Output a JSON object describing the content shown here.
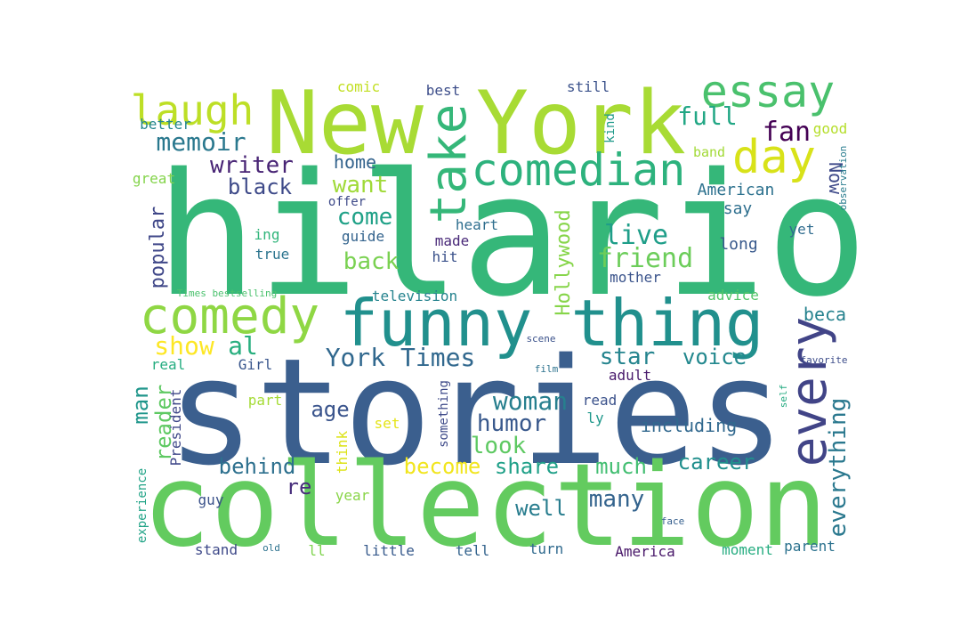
{
  "words": [
    {
      "text": "hilario",
      "color": "#35b779"
    },
    {
      "text": "stories",
      "color": "#3b5f8e"
    },
    {
      "text": "collection",
      "color": "#63cb5f"
    },
    {
      "text": "New York",
      "color": "#a8db34"
    },
    {
      "text": "funny thing",
      "color": "#21908d"
    },
    {
      "text": "comedy",
      "color": "#8fd744"
    },
    {
      "text": "comedian",
      "color": "#2db27d"
    },
    {
      "text": "essay",
      "color": "#4ac16d"
    },
    {
      "text": "take",
      "color": "#35b779"
    },
    {
      "text": "laugh",
      "color": "#bddf26"
    },
    {
      "text": "day",
      "color": "#d8e219"
    },
    {
      "text": "every",
      "color": "#414487"
    },
    {
      "text": "everything",
      "color": "#2a788e"
    },
    {
      "text": "memoir",
      "color": "#2a788e"
    },
    {
      "text": "writer",
      "color": "#482475"
    },
    {
      "text": "black",
      "color": "#3e4a89"
    },
    {
      "text": "want",
      "color": "#a0da39"
    },
    {
      "text": "come",
      "color": "#1fa187"
    },
    {
      "text": "back",
      "color": "#7ad151"
    },
    {
      "text": "home",
      "color": "#33638d"
    },
    {
      "text": "live",
      "color": "#1f9e89"
    },
    {
      "text": "friend",
      "color": "#6ccd5a"
    },
    {
      "text": "full",
      "color": "#22a785"
    },
    {
      "text": "fan",
      "color": "#440154"
    },
    {
      "text": "good",
      "color": "#b5de2b"
    },
    {
      "text": "Now",
      "color": "#3e4989"
    },
    {
      "text": "American",
      "color": "#2c718e"
    },
    {
      "text": "say",
      "color": "#2e6f8e"
    },
    {
      "text": "long",
      "color": "#38598c"
    },
    {
      "text": "yet",
      "color": "#2f6c8e"
    },
    {
      "text": "Hollywood",
      "color": "#86d549"
    },
    {
      "text": "popular",
      "color": "#3f4788"
    },
    {
      "text": "show",
      "color": "#fde725"
    },
    {
      "text": "al",
      "color": "#29af7f"
    },
    {
      "text": "York Times",
      "color": "#31688e"
    },
    {
      "text": "star",
      "color": "#25848e"
    },
    {
      "text": "voice",
      "color": "#23888e"
    },
    {
      "text": "beca",
      "color": "#26828e"
    },
    {
      "text": "man",
      "color": "#1f968b"
    },
    {
      "text": "reader",
      "color": "#5ec962"
    },
    {
      "text": "age",
      "color": "#3a548c"
    },
    {
      "text": "woman",
      "color": "#277f8e"
    },
    {
      "text": "humor",
      "color": "#38588c"
    },
    {
      "text": "look",
      "color": "#5ec962"
    },
    {
      "text": "behind",
      "color": "#2d708e"
    },
    {
      "text": "become",
      "color": "#f1e51d"
    },
    {
      "text": "share",
      "color": "#1fa088"
    },
    {
      "text": "much",
      "color": "#42be71"
    },
    {
      "text": "career",
      "color": "#218f8d"
    },
    {
      "text": "re",
      "color": "#472d7b"
    },
    {
      "text": "many",
      "color": "#33638d"
    },
    {
      "text": "well",
      "color": "#287d8e"
    },
    {
      "text": "including",
      "color": "#31688e"
    },
    {
      "text": "comic",
      "color": "#c2df23"
    },
    {
      "text": "best",
      "color": "#3d4e8a"
    },
    {
      "text": "still",
      "color": "#3b528b"
    },
    {
      "text": "kind",
      "color": "#1f9a8a"
    },
    {
      "text": "band",
      "color": "#a2da37"
    },
    {
      "text": "better",
      "color": "#24868e"
    },
    {
      "text": "great",
      "color": "#84d44b"
    },
    {
      "text": "offer",
      "color": "#3e4a89"
    },
    {
      "text": "heart",
      "color": "#2e6e8e"
    },
    {
      "text": "ing",
      "color": "#31b57b"
    },
    {
      "text": "true",
      "color": "#2b748e"
    },
    {
      "text": "guide",
      "color": "#33638d"
    },
    {
      "text": "made",
      "color": "#482878"
    },
    {
      "text": "hit",
      "color": "#3b528b"
    },
    {
      "text": "mother",
      "color": "#3a538b"
    },
    {
      "text": "advice",
      "color": "#52c569"
    },
    {
      "text": "television",
      "color": "#25838e"
    },
    {
      "text": "Times bestselling",
      "color": "#4ac16d"
    },
    {
      "text": "observation",
      "color": "#287c8e"
    },
    {
      "text": "scene",
      "color": "#3b528b"
    },
    {
      "text": "real",
      "color": "#26ad81"
    },
    {
      "text": "Girl",
      "color": "#39568c"
    },
    {
      "text": "film",
      "color": "#2c728e"
    },
    {
      "text": "favorite",
      "color": "#3d4d8a"
    },
    {
      "text": "adult",
      "color": "#481a6c"
    },
    {
      "text": "part",
      "color": "#a5db36"
    },
    {
      "text": "read",
      "color": "#3b528b"
    },
    {
      "text": "self",
      "color": "#25ab82"
    },
    {
      "text": "President",
      "color": "#3f4889"
    },
    {
      "text": "set",
      "color": "#e5e419"
    },
    {
      "text": "ly",
      "color": "#1f988b"
    },
    {
      "text": "think",
      "color": "#dde318"
    },
    {
      "text": "something",
      "color": "#3e4a89"
    },
    {
      "text": "experience",
      "color": "#20a386"
    },
    {
      "text": "guy",
      "color": "#3b528b"
    },
    {
      "text": "year",
      "color": "#89d548"
    },
    {
      "text": "face",
      "color": "#355f8d"
    },
    {
      "text": "stand",
      "color": "#3e4989"
    },
    {
      "text": "old",
      "color": "#2c728e"
    },
    {
      "text": "ll",
      "color": "#7fd34e"
    },
    {
      "text": "little",
      "color": "#375a8c"
    },
    {
      "text": "tell",
      "color": "#33638d"
    },
    {
      "text": "turn",
      "color": "#306a8e"
    },
    {
      "text": "America",
      "color": "#481769"
    },
    {
      "text": "moment",
      "color": "#27ad81"
    },
    {
      "text": "parent",
      "color": "#2c728e"
    }
  ]
}
